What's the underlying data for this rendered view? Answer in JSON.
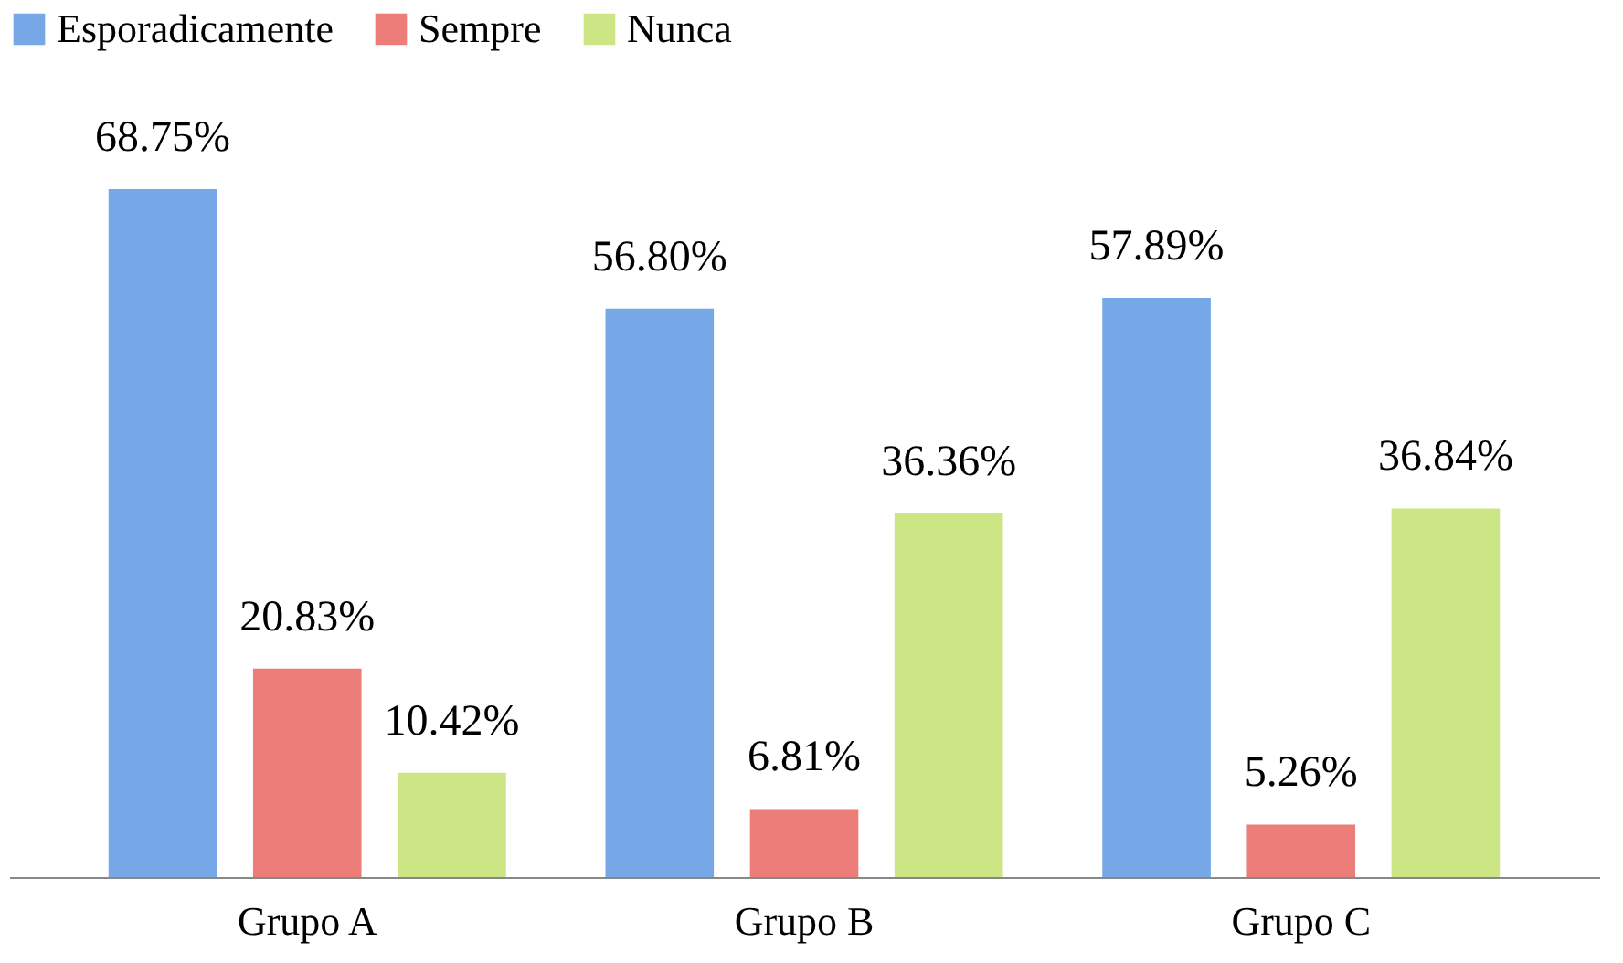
{
  "chart_data": {
    "type": "bar",
    "categories": [
      "Grupo A",
      "Grupo B",
      "Grupo C"
    ],
    "series": [
      {
        "name": "Esporadicamente",
        "color": "#76a7e6",
        "values": [
          68.75,
          56.8,
          57.89
        ],
        "value_labels": [
          "68.75%",
          "56.80%",
          "57.89%"
        ]
      },
      {
        "name": "Sempre",
        "color": "#ec7d78",
        "values": [
          20.83,
          6.81,
          5.26
        ],
        "value_labels": [
          "20.83%",
          "6.81%",
          "5.26%"
        ]
      },
      {
        "name": "Nunca",
        "color": "#cde685",
        "values": [
          10.42,
          36.36,
          36.84
        ],
        "value_labels": [
          "10.42%",
          "36.36%",
          "36.84%"
        ]
      }
    ],
    "legend": "top",
    "grid": false
  }
}
